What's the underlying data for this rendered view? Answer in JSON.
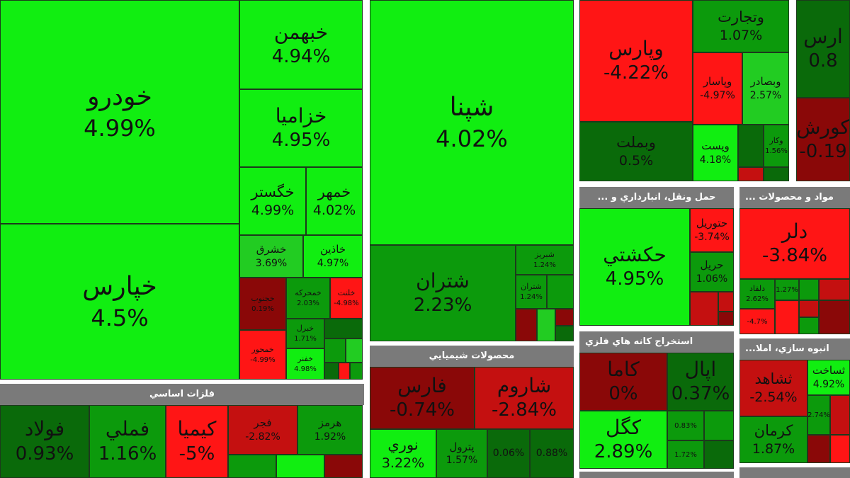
{
  "colors": {
    "bright_green": "#11ee11",
    "medium_green": "#22cc22",
    "green": "#0c9a0c",
    "dark_green": "#0a6a0a",
    "bright_red": "#ff1515",
    "red": "#c41010",
    "dark_red": "#8a0808",
    "header_gray": "#7a7a7a"
  },
  "sections": {
    "transport": {
      "header": "... حمل ونقل، انبارداري و"
    },
    "materials": {
      "header": "... مواد و محصولات"
    },
    "mining": {
      "header": "استخراج كانه هاي فلزي"
    },
    "chemicals": {
      "header": "محصولات شيميايي"
    },
    "basic_metals": {
      "header": "فلزات اساسي"
    },
    "construction": {
      "header": "...انبوه سازي، املا"
    }
  },
  "tiles": {
    "khodro": {
      "name": "خودرو",
      "pct": "4.99%"
    },
    "khpars": {
      "name": "خپارس",
      "pct": "4.5%"
    },
    "khbahman": {
      "name": "خبهمن",
      "pct": "4.94%"
    },
    "khazamia": {
      "name": "خزاميا",
      "pct": "4.95%"
    },
    "khgostar": {
      "name": "خگستر",
      "pct": "4.99%"
    },
    "khmehr": {
      "name": "خمهر",
      "pct": "4.02%"
    },
    "khshargh": {
      "name": "خشرق",
      "pct": "3.69%"
    },
    "khazin": {
      "name": "خاذين",
      "pct": "4.97%"
    },
    "khmohareke": {
      "name": "خمحركه",
      "pct": "2.03%"
    },
    "khjonoob": {
      "name": "خجنوب",
      "pct": "0.19%"
    },
    "khtoos": {
      "name": "خبرل",
      "pct": "1.71%"
    },
    "khmehvar": {
      "name": "خمحور",
      "pct": "-4.99%"
    },
    "khkhat": {
      "name": "خفنر",
      "pct": "4.98%"
    },
    "khlent": {
      "name": "خلنت",
      "pct": "-4.98%"
    },
    "shepna": {
      "name": "شپنا",
      "pct": "4.02%"
    },
    "shetran": {
      "name": "شتران",
      "pct": "2.23%"
    },
    "shabriz": {
      "name": "شبريز",
      "pct": "1.24%"
    },
    "shesfahan": {
      "name": "شتران",
      "pct": "1.24%"
    },
    "vpars": {
      "name": "وپارس",
      "pct": "-4.22%"
    },
    "vtejarat": {
      "name": "وتجارت",
      "pct": "1.07%"
    },
    "vbasar": {
      "name": "وپاسار",
      "pct": "-4.97%"
    },
    "vsadar": {
      "name": "وبصادر",
      "pct": "2.57%"
    },
    "vmellat": {
      "name": "وبملت",
      "pct": "0.5%"
    },
    "vpost": {
      "name": "وپست",
      "pct": "4.18%"
    },
    "vkar": {
      "name": "وكار",
      "pct": "1.56%"
    },
    "ra_edge1": {
      "name": "ارس",
      "pct": "0.8"
    },
    "ra_edge2": {
      "name": "كورش",
      "pct": "-0.19"
    },
    "haksheti": {
      "name": "حكشتي",
      "pct": "4.95%"
    },
    "hnoor": {
      "name": "حتوريل",
      "pct": "-3.74%"
    },
    "hpl": {
      "name": "حريل",
      "pct": "1.06%"
    },
    "dlar": {
      "name": "دلر",
      "pct": "-3.84%"
    },
    "d_small1": {
      "name": "دلقاد",
      "pct": "2.62%"
    },
    "d_small2": {
      "name": "",
      "pct": "1.27%"
    },
    "d_small3": {
      "name": "",
      "pct": "-4.7%"
    },
    "kama": {
      "name": "كاما",
      "pct": "0%"
    },
    "kanal": {
      "name": "اپال",
      "pct": "0.37%"
    },
    "kgol": {
      "name": "كگل",
      "pct": "2.89%"
    },
    "k_small1": {
      "name": "",
      "pct": "0.83%"
    },
    "k_small2": {
      "name": "",
      "pct": "1.72%"
    },
    "fars": {
      "name": "فارس",
      "pct": "-0.74%"
    },
    "sharoom": {
      "name": "شاروم",
      "pct": "-2.84%"
    },
    "noori": {
      "name": "نوري",
      "pct": "3.22%"
    },
    "baspol": {
      "name": "پترول",
      "pct": "1.57%"
    },
    "c_small1": {
      "name": "",
      "pct": "0.06%"
    },
    "c_small2": {
      "name": "",
      "pct": "0.88%"
    },
    "foolad": {
      "name": "فولاد",
      "pct": "0.93%"
    },
    "femli": {
      "name": "فملي",
      "pct": "1.16%"
    },
    "kimia": {
      "name": "كيميا",
      "pct": "-5%"
    },
    "fjar": {
      "name": "فجر",
      "pct": "-2.82%"
    },
    "hormoz": {
      "name": "هرمز",
      "pct": "1.92%"
    },
    "shahed": {
      "name": "ثشاهد",
      "pct": "-2.54%"
    },
    "sakht": {
      "name": "ثساخت",
      "pct": "4.92%"
    },
    "kerman": {
      "name": "كرمان",
      "pct": "1.87%"
    },
    "t_small1": {
      "name": "",
      "pct": "2.74%"
    }
  }
}
